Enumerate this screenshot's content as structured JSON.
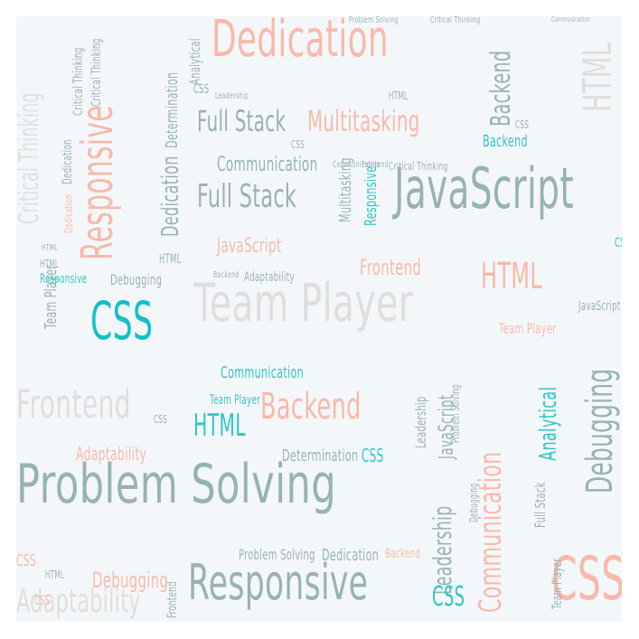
{
  "cloud": {
    "words": [
      {
        "id": "problem-solving",
        "text": "Problem Solving",
        "color": "teal"
      },
      {
        "id": "team-player-big",
        "text": "Team Player",
        "color": "pale"
      },
      {
        "id": "dedication-big",
        "text": "Dedication",
        "color": "salmon"
      },
      {
        "id": "javascript-big",
        "text": "JavaScript",
        "color": "teal"
      },
      {
        "id": "responsive-vertical",
        "text": "Responsive",
        "color": "salmon"
      },
      {
        "id": "responsive-bottom",
        "text": "Responsive",
        "color": "teal"
      },
      {
        "id": "css-bottom-right",
        "text": "CSS",
        "color": "salmon"
      },
      {
        "id": "css-left",
        "text": "CSS",
        "color": "bright"
      },
      {
        "id": "communication-vertical",
        "text": "Communication",
        "color": "salmon"
      },
      {
        "id": "debugging-vertical",
        "text": "Debugging",
        "color": "teal"
      },
      {
        "id": "multitasking",
        "text": "Multitasking",
        "color": "salmon"
      },
      {
        "id": "full-stack-1",
        "text": "Full Stack",
        "color": "teal"
      },
      {
        "id": "full-stack-2",
        "text": "Full Stack",
        "color": "teal"
      },
      {
        "id": "frontend-big",
        "text": "Frontend",
        "color": "pale"
      },
      {
        "id": "adaptability-big",
        "text": "Adaptability",
        "color": "pale"
      },
      {
        "id": "backend-1",
        "text": "Backend",
        "color": "salmon"
      },
      {
        "id": "backend-vertical",
        "text": "Backend",
        "color": "teal"
      },
      {
        "id": "html-1",
        "text": "HTML",
        "color": "salmon"
      },
      {
        "id": "html-2",
        "text": "HTML",
        "color": "cyan"
      },
      {
        "id": "html-top-right",
        "text": "HTML",
        "color": "pale"
      },
      {
        "id": "leadership-vertical",
        "text": "Leadership",
        "color": "teal"
      },
      {
        "id": "critical-thinking-vertical",
        "text": "Critical Thinking",
        "color": "paleT"
      },
      {
        "id": "analytical-vertical",
        "text": "Analytical",
        "color": "cyan"
      },
      {
        "id": "communication-1",
        "text": "Communication",
        "color": "teal"
      },
      {
        "id": "communication-2",
        "text": "Communication",
        "color": "cyan"
      },
      {
        "id": "dedication-2",
        "text": "Dedication",
        "color": "teal"
      },
      {
        "id": "dedication-3",
        "text": "Dedication",
        "color": "teal"
      },
      {
        "id": "javascript-2",
        "text": "JavaScript",
        "color": "salmon"
      },
      {
        "id": "javascript-vertical",
        "text": "JavaScript",
        "color": "teal"
      },
      {
        "id": "frontend-2",
        "text": "Frontend",
        "color": "salmon"
      },
      {
        "id": "determination-1",
        "text": "Determination",
        "color": "teal"
      },
      {
        "id": "determination-vertical",
        "text": "Determination",
        "color": "teal"
      },
      {
        "id": "adaptability-2",
        "text": "Adaptability",
        "color": "salmon"
      },
      {
        "id": "adaptability-3",
        "text": "Adaptability",
        "color": "teal"
      },
      {
        "id": "debugging-2",
        "text": "Debugging",
        "color": "teal"
      },
      {
        "id": "team-player-2",
        "text": "Team Player",
        "color": "teal"
      },
      {
        "id": "team-player-3",
        "text": "Team Player",
        "color": "cyan"
      },
      {
        "id": "team-player-4",
        "text": "Team Player",
        "color": "salmon"
      },
      {
        "id": "responsive-2",
        "text": "Responsive",
        "color": "cyan"
      },
      {
        "id": "responsive-vertical-2",
        "text": "Responsive",
        "color": "cyan"
      },
      {
        "id": "multitasking-vertical",
        "text": "Multitasking",
        "color": "teal"
      },
      {
        "id": "analytical-2",
        "text": "Analytical",
        "color": "teal"
      },
      {
        "id": "problem-solving-2",
        "text": "Problem Solving",
        "color": "teal"
      },
      {
        "id": "dedication-4",
        "text": "Dedication",
        "color": "teal"
      },
      {
        "id": "backend-2",
        "text": "Backend",
        "color": "salmon"
      },
      {
        "id": "backend-3",
        "text": "Backend",
        "color": "cyan"
      },
      {
        "id": "css-2",
        "text": "CSS",
        "color": "cyan"
      },
      {
        "id": "css-3",
        "text": "CSS",
        "color": "teal"
      },
      {
        "id": "css-4",
        "text": "CSS",
        "color": "salmon"
      },
      {
        "id": "css-5",
        "text": "CSS",
        "color": "cyan"
      },
      {
        "id": "leadership-2",
        "text": "Leadership",
        "color": "teal"
      },
      {
        "id": "critical-thinking-2",
        "text": "Critical Thinking",
        "color": "teal"
      },
      {
        "id": "full-stack-vertical",
        "text": "Full Stack",
        "color": "teal"
      },
      {
        "id": "frontend-3",
        "text": "Frontend",
        "color": "teal"
      },
      {
        "id": "html-3",
        "text": "HTML",
        "color": "teal"
      },
      {
        "id": "html-4",
        "text": "HTML",
        "color": "teal"
      },
      {
        "id": "problem-solving-vertical",
        "text": "Problem Solving",
        "color": "teal"
      },
      {
        "id": "communication-3",
        "text": "Communication",
        "color": "teal"
      },
      {
        "id": "debugging-vertical-2",
        "text": "Debugging",
        "color": "teal"
      },
      {
        "id": "debugging-3",
        "text": "Debugging",
        "color": "salmon"
      },
      {
        "id": "team-player-bottom-vertical",
        "text": "Team Player",
        "color": "teal"
      },
      {
        "id": "javascript-3",
        "text": "JavaScript",
        "color": "teal"
      },
      {
        "id": "frontend-vertical",
        "text": "Frontend",
        "color": "teal"
      },
      {
        "id": "css-6",
        "text": "CSS",
        "color": "salmon"
      },
      {
        "id": "css-7",
        "text": "CSS",
        "color": "teal"
      },
      {
        "id": "html-5",
        "text": "HTML",
        "color": "teal"
      },
      {
        "id": "css-8",
        "text": "CSS",
        "color": "cyan"
      },
      {
        "id": "critical-thinking-3",
        "text": "Critical Thinking",
        "color": "teal"
      },
      {
        "id": "communication-4",
        "text": "Communication",
        "color": "teal"
      },
      {
        "id": "leadership-3",
        "text": "Leadership",
        "color": "teal"
      },
      {
        "id": "backend-4",
        "text": "Backend",
        "color": "teal"
      },
      {
        "id": "problem-solving-3",
        "text": "Problem Solving",
        "color": "teal"
      },
      {
        "id": "css-9",
        "text": "CSS",
        "color": "teal"
      },
      {
        "id": "html-6",
        "text": "HTML",
        "color": "teal"
      },
      {
        "id": "css-10",
        "text": "CSS",
        "color": "teal"
      },
      {
        "id": "html-7",
        "text": "HTML",
        "color": "teal"
      },
      {
        "id": "dedication-5",
        "text": "Dedication",
        "color": "salmon"
      },
      {
        "id": "critical-thinking-vertical-2",
        "text": "Critical Thinking",
        "color": "teal"
      },
      {
        "id": "critical-thinking-vertical-3",
        "text": "Critical Thinking",
        "color": "teal"
      }
    ],
    "palette": {
      "teal": "#97b3af",
      "salmon": "#f8b9aa",
      "cyan": "#2fc6c8",
      "bright": "#12c1c6",
      "pale": "#dedede",
      "paleS": "#f6dcd3",
      "paleT": "#d7e4e2"
    }
  }
}
